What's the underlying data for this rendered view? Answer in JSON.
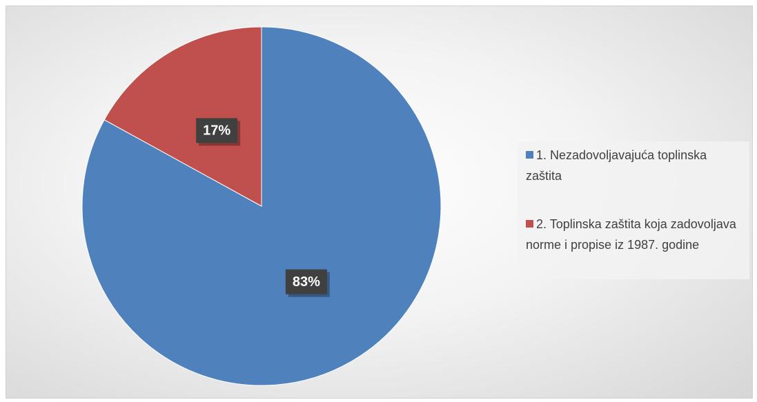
{
  "chart_data": {
    "type": "pie",
    "categories": [
      "1. Nezadovoljavajuća toplinska zaštita",
      "2. Toplinska zaštita koja zadovoljava norme i propise iz 1987. godine"
    ],
    "values": [
      83,
      17
    ],
    "value_labels": [
      "83%",
      "17%"
    ],
    "colors": [
      "#4f81bd",
      "#c0504d"
    ],
    "legend": "right"
  }
}
